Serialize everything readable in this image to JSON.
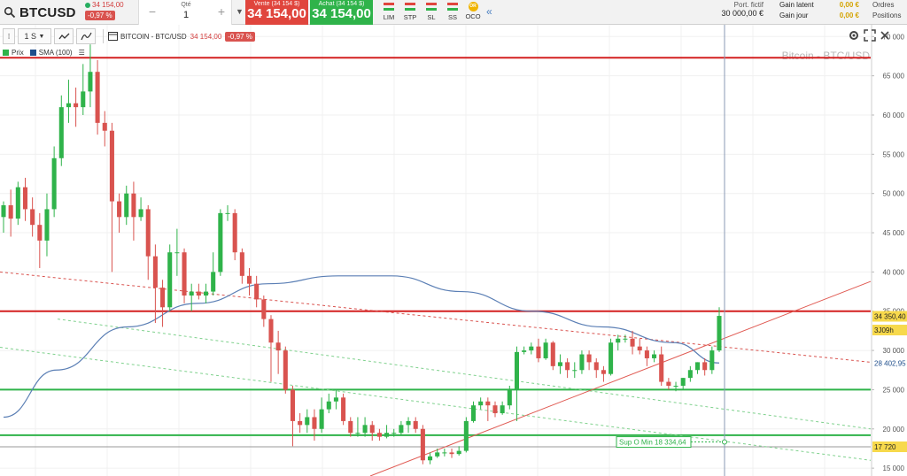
{
  "header": {
    "symbol": "BTCUSD",
    "price": "34 154,00",
    "change_pct": "-0,97 %",
    "qty_label": "Qté",
    "qty_value": "1",
    "sell_label": "Vente (34 154 $)",
    "sell_value": "34 154,00",
    "buy_label": "Achat (34 154 $)",
    "buy_value": "34 154,00",
    "order_types": [
      "LIM",
      "STP",
      "SL",
      "SS",
      "OCO"
    ],
    "oco_icon_text": "OR",
    "portfolio_label": "Port. fictif",
    "portfolio_value": "30 000,00 €",
    "gain_latent_label": "Gain latent",
    "gain_latent_value": "0,00 €",
    "gain_jour_label": "Gain jour",
    "gain_jour_value": "0,00 €",
    "orders_label": "Ordres",
    "positions_label": "Positions"
  },
  "toolbar": {
    "interval": "1 S",
    "chart_title": "BITCOIN - BTC/USD",
    "chart_price": "34 154,00",
    "chart_change": "-0,97 %"
  },
  "legend": {
    "price_label": "Prix",
    "sma_label": "SMA (100)",
    "price_color": "#2fb34a",
    "sma_color": "#1f4e8c"
  },
  "chart_data": {
    "type": "candlestick",
    "watermark": "Bitcoin - BTC/USD",
    "ylim": [
      14000,
      71500
    ],
    "yticks": [
      15000,
      20000,
      25000,
      30000,
      35000,
      40000,
      45000,
      50000,
      55000,
      60000,
      65000,
      70000
    ],
    "ytick_labels": [
      "15 000",
      "20 000",
      "25 000",
      "30 000",
      "35 000",
      "40 000",
      "45 000",
      "50 000",
      "55 000",
      "60 000",
      "65 000",
      "70 000"
    ],
    "colors": {
      "up": "#2fb34a",
      "down": "#d9534f",
      "sma": "#5b7fb5"
    },
    "candles": [
      [
        47000,
        48500,
        45000,
        49000
      ],
      [
        48500,
        46800,
        44500,
        50500
      ],
      [
        46800,
        50800,
        46000,
        51500
      ],
      [
        50800,
        48000,
        46500,
        52000
      ],
      [
        48000,
        46000,
        44500,
        49500
      ],
      [
        46000,
        44000,
        40500,
        47500
      ],
      [
        44000,
        48000,
        42000,
        50000
      ],
      [
        48000,
        54500,
        47000,
        56000
      ],
      [
        54500,
        61000,
        53500,
        62500
      ],
      [
        61000,
        61500,
        59000,
        64500
      ],
      [
        61500,
        61000,
        58500,
        63500
      ],
      [
        61000,
        63000,
        60000,
        66500
      ],
      [
        63000,
        65500,
        61000,
        69000
      ],
      [
        65500,
        59000,
        57500,
        67000
      ],
      [
        59000,
        58000,
        56000,
        60500
      ],
      [
        58000,
        49000,
        40000,
        59000
      ],
      [
        49000,
        47000,
        45000,
        50000
      ],
      [
        47000,
        50000,
        46000,
        51000
      ],
      [
        50000,
        47000,
        44000,
        51500
      ],
      [
        47000,
        48000,
        46500,
        49500
      ],
      [
        48000,
        42000,
        39000,
        48500
      ],
      [
        42000,
        38000,
        33500,
        43500
      ],
      [
        38000,
        35500,
        33000,
        39000
      ],
      [
        35500,
        42500,
        35000,
        43500
      ],
      [
        42500,
        42500,
        39500,
        45500
      ],
      [
        42500,
        37000,
        36000,
        43000
      ],
      [
        37000,
        37500,
        35000,
        38500
      ],
      [
        37500,
        37000,
        36500,
        38500
      ],
      [
        37000,
        37500,
        36000,
        38500
      ],
      [
        37500,
        40000,
        37000,
        42500
      ],
      [
        40000,
        47500,
        39500,
        48000
      ],
      [
        47500,
        47500,
        46500,
        48500
      ],
      [
        47500,
        42500,
        41500,
        48000
      ],
      [
        42500,
        39500,
        38500,
        43000
      ],
      [
        39500,
        38500,
        37000,
        40500
      ],
      [
        38500,
        36500,
        35500,
        39500
      ],
      [
        36500,
        34000,
        33000,
        37000
      ],
      [
        34000,
        31000,
        26000,
        34500
      ],
      [
        31000,
        30000,
        27000,
        32500
      ],
      [
        30000,
        25000,
        24500,
        30500
      ],
      [
        25000,
        21000,
        17800,
        25500
      ],
      [
        21000,
        20500,
        19500,
        22000
      ],
      [
        20500,
        21500,
        19500,
        22500
      ],
      [
        21500,
        20000,
        18500,
        22500
      ],
      [
        20000,
        22500,
        19500,
        24000
      ],
      [
        22500,
        23500,
        22000,
        24500
      ],
      [
        23500,
        24000,
        22500,
        25000
      ],
      [
        24000,
        21000,
        20500,
        24500
      ],
      [
        21000,
        19500,
        19000,
        21500
      ],
      [
        19500,
        19500,
        19000,
        21500
      ],
      [
        19500,
        20500,
        19000,
        21500
      ],
      [
        20500,
        19500,
        18500,
        21000
      ],
      [
        19500,
        19000,
        18500,
        20000
      ],
      [
        19000,
        19500,
        18800,
        20500
      ],
      [
        19500,
        19500,
        19000,
        20000
      ],
      [
        19500,
        20500,
        19200,
        21000
      ],
      [
        20500,
        21000,
        19500,
        21500
      ],
      [
        21000,
        20000,
        19500,
        21500
      ],
      [
        20000,
        16000,
        15500,
        20500
      ],
      [
        16000,
        16500,
        15500,
        17000
      ],
      [
        16500,
        17000,
        16300,
        17500
      ],
      [
        17000,
        17000,
        16500,
        17500
      ],
      [
        17000,
        16800,
        16300,
        17500
      ],
      [
        16800,
        17200,
        16600,
        17800
      ],
      [
        17200,
        21000,
        17000,
        21500
      ],
      [
        21000,
        23000,
        20800,
        23500
      ],
      [
        23000,
        23500,
        22500,
        24000
      ],
      [
        23500,
        23000,
        21000,
        24000
      ],
      [
        23000,
        22000,
        21500,
        23500
      ],
      [
        22000,
        23000,
        21800,
        23500
      ],
      [
        23000,
        25000,
        22500,
        25500
      ],
      [
        25000,
        29800,
        21000,
        30500
      ],
      [
        29800,
        30000,
        29500,
        30500
      ],
      [
        30000,
        30500,
        29500,
        31000
      ],
      [
        30500,
        29000,
        28500,
        31500
      ],
      [
        29000,
        31000,
        28800,
        31500
      ],
      [
        31000,
        28000,
        27500,
        31200
      ],
      [
        28000,
        28500,
        27000,
        29500
      ],
      [
        28500,
        27500,
        26500,
        29000
      ],
      [
        27500,
        27500,
        26500,
        28500
      ],
      [
        27500,
        29500,
        27000,
        30000
      ],
      [
        29500,
        28500,
        27500,
        30000
      ],
      [
        28500,
        27500,
        26500,
        29000
      ],
      [
        27500,
        27000,
        26000,
        28000
      ],
      [
        27000,
        31000,
        26800,
        31500
      ],
      [
        31000,
        31500,
        30000,
        32000
      ],
      [
        31500,
        31500,
        31000,
        32000
      ],
      [
        31500,
        30500,
        29500,
        32500
      ],
      [
        30500,
        30000,
        29500,
        31500
      ],
      [
        30000,
        29000,
        28000,
        30500
      ],
      [
        29000,
        29500,
        28500,
        30000
      ],
      [
        29500,
        26000,
        25500,
        30500
      ],
      [
        26000,
        25500,
        25000,
        26500
      ],
      [
        25500,
        25500,
        24800,
        26000
      ],
      [
        25500,
        26500,
        25000,
        26500
      ],
      [
        26500,
        27500,
        26000,
        28000
      ],
      [
        27500,
        28500,
        27000,
        28500
      ],
      [
        28500,
        27500,
        26800,
        29000
      ],
      [
        27500,
        30000,
        27000,
        30500
      ],
      [
        30000,
        34400,
        29800,
        35500
      ]
    ],
    "horizontal_lines": [
      {
        "value": 67300,
        "color": "#d42020"
      },
      {
        "value": 35000,
        "color": "#d42020"
      },
      {
        "value": 25000,
        "color": "#2fb34a"
      },
      {
        "value": 19200,
        "color": "#2fb34a"
      },
      {
        "value": 17720,
        "color": "#999999"
      }
    ],
    "labels": {
      "last_price": "34 350,40",
      "countdown": "3J09h",
      "sma_value": "28 402,95",
      "support_level": "17 720",
      "support_text": "Sup O Min  18 334,64"
    }
  }
}
